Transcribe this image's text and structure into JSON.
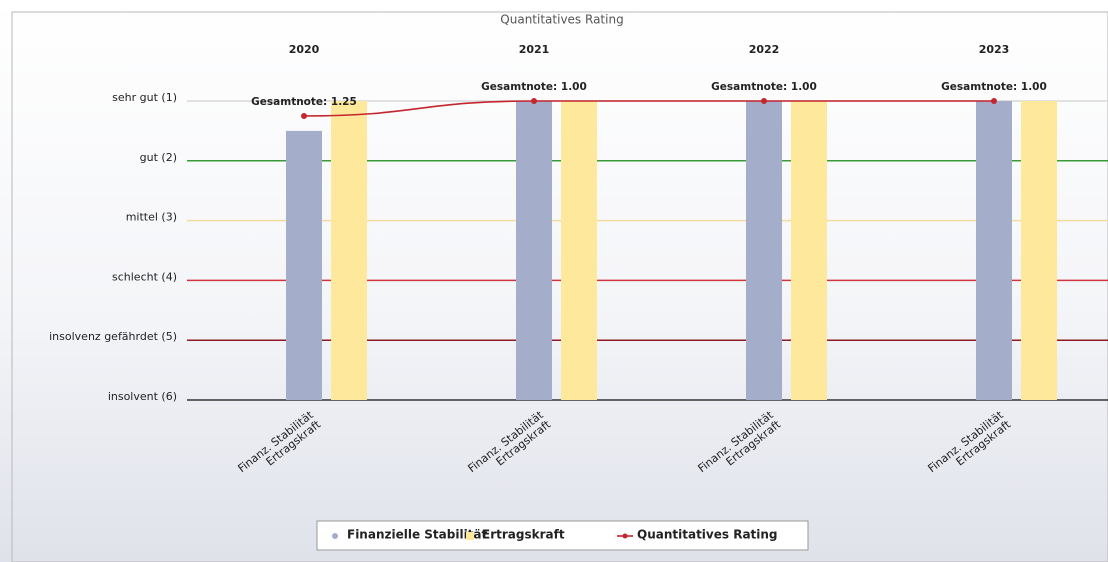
{
  "chart_data": {
    "type": "bar",
    "title": "Quantitatives Rating",
    "groups": [
      "2020",
      "2021",
      "2022",
      "2023"
    ],
    "bar_labels": [
      "Finanz. Stabilität",
      "Ertragskraft"
    ],
    "series": [
      {
        "name": "Finanzielle Stabilität",
        "type": "bar",
        "color": "#a4aecb",
        "values": [
          1.5,
          1.0,
          1.0,
          1.0
        ]
      },
      {
        "name": "Ertragskraft",
        "type": "bar",
        "color": "#fde89c",
        "values": [
          1.0,
          1.0,
          1.0,
          1.0
        ]
      },
      {
        "name": "Quantitatives Rating",
        "type": "line",
        "color": "#c4262e",
        "values": [
          1.25,
          1.0,
          1.0,
          1.0
        ],
        "value_labels": [
          "Gesamtnote: 1.25",
          "Gesamtnote: 1.00",
          "Gesamtnote: 1.00",
          "Gesamtnote: 1.00"
        ]
      }
    ],
    "ylim": [
      6,
      0
    ],
    "yticks": [
      {
        "value": 1,
        "label": "sehr gut (1)"
      },
      {
        "value": 2,
        "label": "gut (2)"
      },
      {
        "value": 3,
        "label": "mittel (3)"
      },
      {
        "value": 4,
        "label": "schlecht (4)"
      },
      {
        "value": 5,
        "label": "insolvenz gefährdet (5)"
      },
      {
        "value": 6,
        "label": "insolvent (6)"
      }
    ],
    "ytick_colors": [
      "#d8d8d8",
      "#3a9a3a",
      "#f3dca0",
      "#d0343c",
      "#8c1a24",
      "#333333"
    ],
    "legend": "bottom"
  }
}
